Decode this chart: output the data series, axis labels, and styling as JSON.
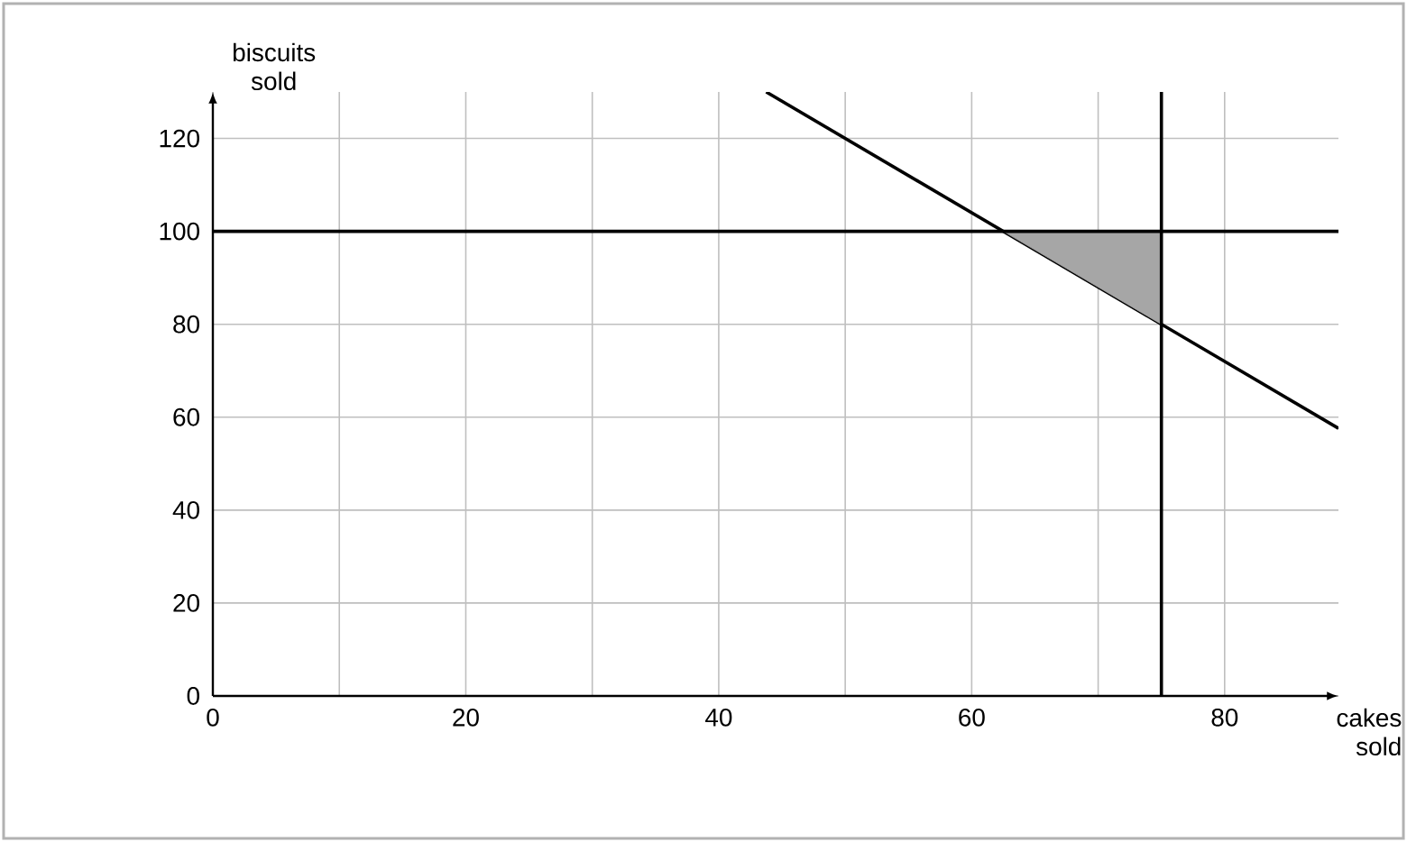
{
  "chart_data": {
    "type": "line",
    "xlabel": "cakes sold",
    "ylabel": "biscuits sold",
    "xlim": [
      0,
      89
    ],
    "ylim": [
      0,
      130
    ],
    "xticks": [
      0,
      {
        "value": 10,
        "label": null
      },
      20,
      {
        "value": 30,
        "label": null
      },
      40,
      {
        "value": 50,
        "label": null
      },
      60,
      {
        "value": 70,
        "label": null
      },
      80
    ],
    "yticks": [
      0,
      20,
      40,
      60,
      80,
      100,
      120
    ],
    "grid": true,
    "marker": "none",
    "line_style": "solid",
    "series": [
      {
        "color": "#000000",
        "x": [
          43.75,
          89
        ],
        "values": [
          130,
          57.6
        ]
      },
      {
        "type": "area",
        "color": "#a6a6a6",
        "x": [
          62.5,
          75,
          75
        ],
        "values": [
          100,
          100,
          80
        ]
      }
    ],
    "ref_lines": [
      {
        "axis": "y",
        "value": 100,
        "color": "#000000"
      },
      {
        "axis": "x",
        "value": 75,
        "color": "#000000"
      }
    ]
  }
}
